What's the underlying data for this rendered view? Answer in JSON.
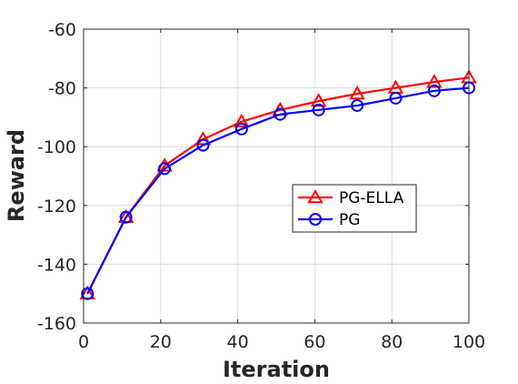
{
  "chart_data": {
    "type": "line",
    "title": "",
    "xlabel": "Iteration",
    "ylabel": "Reward",
    "xlim": [
      0,
      100
    ],
    "ylim": [
      -160,
      -60
    ],
    "xticks": [
      0,
      20,
      40,
      60,
      80,
      100
    ],
    "yticks": [
      -160,
      -140,
      -120,
      -100,
      -80,
      -60
    ],
    "xtick_labels": [
      "0",
      "20",
      "40",
      "60",
      "80",
      "100"
    ],
    "ytick_labels": [
      "-160",
      "-140",
      "-120",
      "-100",
      "-80",
      "-60"
    ],
    "grid": true,
    "legend_position": "center-right",
    "series": [
      {
        "name": "PG-ELLA",
        "color": "#ff0000",
        "marker": "triangle",
        "x": [
          1,
          11,
          21,
          31,
          41,
          51,
          61,
          71,
          81,
          91,
          100
        ],
        "y": [
          -150,
          -124,
          -106.5,
          -97.5,
          -91.5,
          -87.5,
          -84.5,
          -82,
          -80,
          -78,
          -76.5
        ]
      },
      {
        "name": "PG",
        "color": "#0000ff",
        "marker": "circle",
        "x": [
          1,
          11,
          21,
          31,
          41,
          51,
          61,
          71,
          81,
          91,
          100
        ],
        "y": [
          -150,
          -124,
          -107.5,
          -99.5,
          -94,
          -89,
          -87.5,
          -86,
          -83.5,
          -81,
          -80
        ]
      }
    ]
  }
}
